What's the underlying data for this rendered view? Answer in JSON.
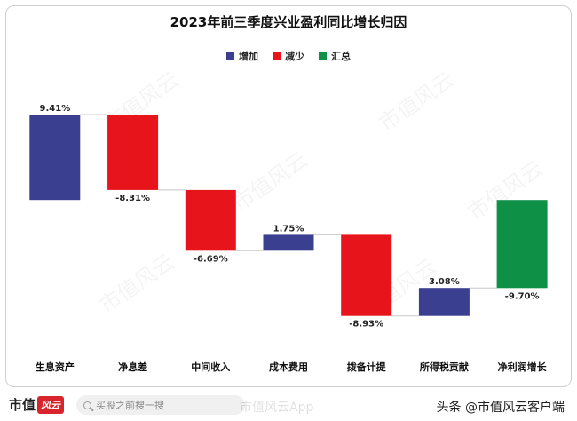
{
  "title": "2023年前三季度兴业盈利同比增长归因",
  "legend": [
    {
      "label": "增加",
      "color": "#3a3f8f"
    },
    {
      "label": "减少",
      "color": "#e8141b"
    },
    {
      "label": "汇总",
      "color": "#0e9146"
    }
  ],
  "chart_data": {
    "type": "bar",
    "subtype": "waterfall",
    "title": "2023年前三季度兴业盈利同比增长归因",
    "categories": [
      "生息资产",
      "净息差",
      "中间收入",
      "成本费用",
      "拨备计提",
      "所得税贡献",
      "净利润增长"
    ],
    "values": [
      9.41,
      -8.31,
      -6.69,
      1.75,
      -8.93,
      3.08,
      -9.7
    ],
    "labels": [
      "9.41%",
      "-8.31%",
      "-6.69%",
      "1.75%",
      "-8.93%",
      "3.08%",
      "-9.70%"
    ],
    "kinds": [
      "increase",
      "decrease",
      "decrease",
      "increase",
      "decrease",
      "increase",
      "total"
    ],
    "legend": [
      "增加",
      "减少",
      "汇总"
    ],
    "legend_position": "top",
    "grid": false,
    "ylim": [
      -12.8,
      9.41
    ]
  },
  "watermark": {
    "text": "市值风云"
  },
  "footer": {
    "logo_text": "市值",
    "logo_mark": "风云",
    "search_placeholder": "买股之前搜一搜",
    "app_watermark": "市值风云App",
    "source": "头条 @市值风云客户端"
  }
}
